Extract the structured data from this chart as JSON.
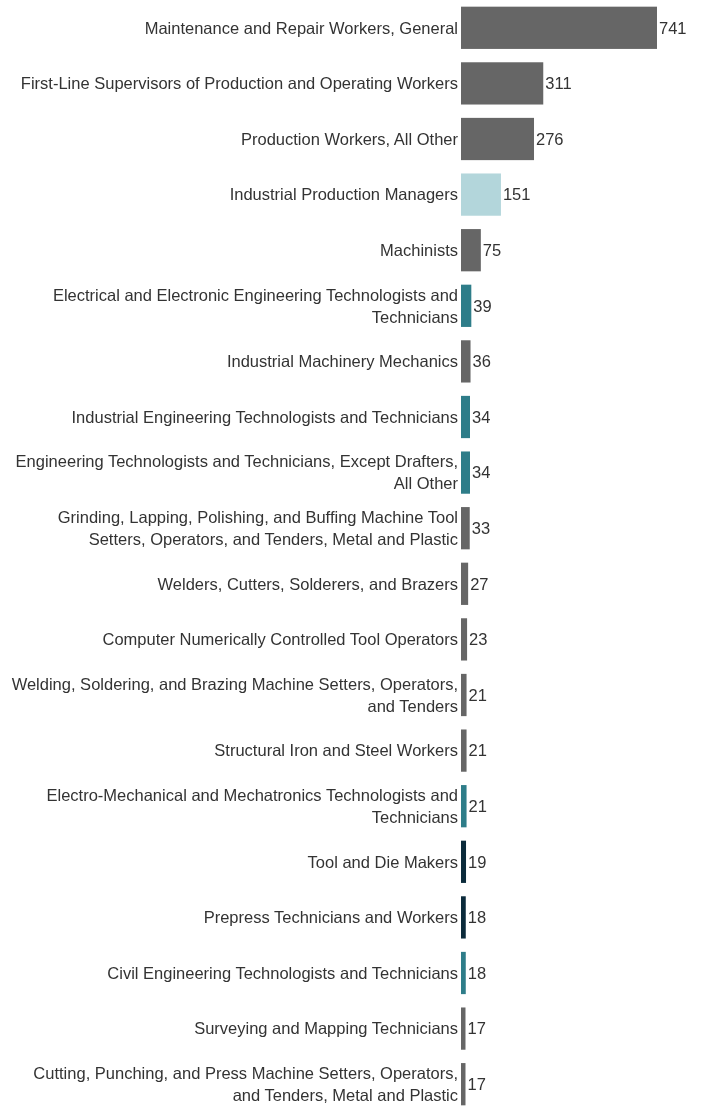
{
  "chart_data": {
    "type": "bar",
    "orientation": "horizontal",
    "data_labels": true,
    "categories": [
      "Maintenance and Repair Workers, General",
      "First-Line Supervisors of Production and Operating Workers",
      "Production Workers, All Other",
      "Industrial Production Managers",
      "Machinists",
      "Electrical and Electronic Engineering Technologists and Technicians",
      "Industrial Machinery Mechanics",
      "Industrial Engineering Technologists and Technicians",
      "Engineering Technologists and Technicians, Except Drafters, All Other",
      "Grinding, Lapping, Polishing, and Buffing Machine Tool Setters, Operators, and Tenders, Metal and Plastic",
      "Welders, Cutters, Solderers, and Brazers",
      "Computer Numerically Controlled Tool Operators",
      "Welding, Soldering, and Brazing Machine Setters, Operators, and Tenders",
      "Structural Iron and Steel Workers",
      "Electro-Mechanical and Mechatronics Technologists and Technicians",
      "Tool and Die Makers",
      "Prepress Technicians and Workers",
      "Civil Engineering Technologists and Technicians",
      "Surveying and Mapping Technicians",
      "Cutting, Punching, and Press Machine Setters, Operators, and Tenders, Metal and Plastic"
    ],
    "values": [
      741,
      311,
      276,
      151,
      75,
      39,
      36,
      34,
      34,
      33,
      27,
      23,
      21,
      21,
      21,
      19,
      18,
      18,
      17,
      17
    ],
    "colors": [
      "#666666",
      "#666666",
      "#666666",
      "#b3d6db",
      "#666666",
      "#2e7d89",
      "#666666",
      "#2e7d89",
      "#2e7d89",
      "#666666",
      "#666666",
      "#666666",
      "#666666",
      "#666666",
      "#2e7d89",
      "#0b2b3b",
      "#0b2b3b",
      "#2e7d89",
      "#666666",
      "#666666"
    ]
  }
}
